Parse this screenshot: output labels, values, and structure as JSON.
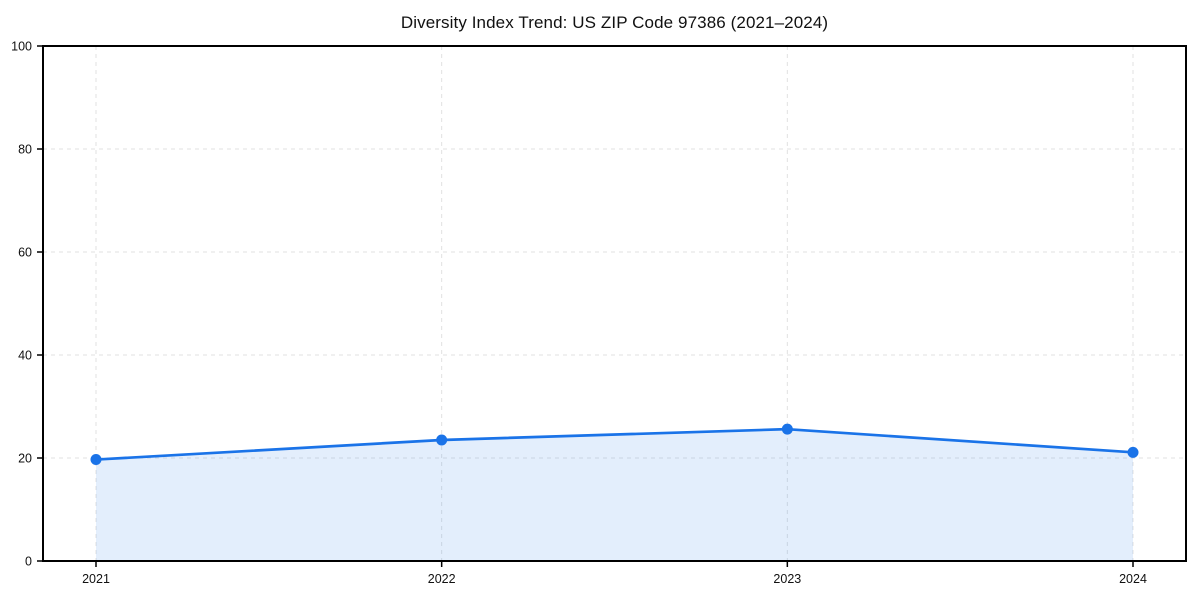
{
  "chart_data": {
    "type": "line",
    "title": "Diversity Index Trend: US ZIP Code 97386 (2021–2024)",
    "categories": [
      "2021",
      "2022",
      "2023",
      "2024"
    ],
    "series": [
      {
        "name": "Diversity Index",
        "values": [
          19.7,
          23.5,
          25.6,
          21.1
        ]
      }
    ],
    "xlabel": "",
    "ylabel": "",
    "ylim": [
      0,
      100
    ],
    "yticks": [
      0,
      20,
      40,
      60,
      80,
      100
    ],
    "grid": true,
    "legend": "none",
    "area_fill": true,
    "colors": {
      "line": "#1a73e8",
      "marker": "#1a73e8",
      "fill": "rgba(26, 115, 232, 0.12)",
      "grid": "#e2e2e2",
      "spine": "#000000",
      "tick_label": "#111111",
      "background": "#ffffff"
    }
  }
}
